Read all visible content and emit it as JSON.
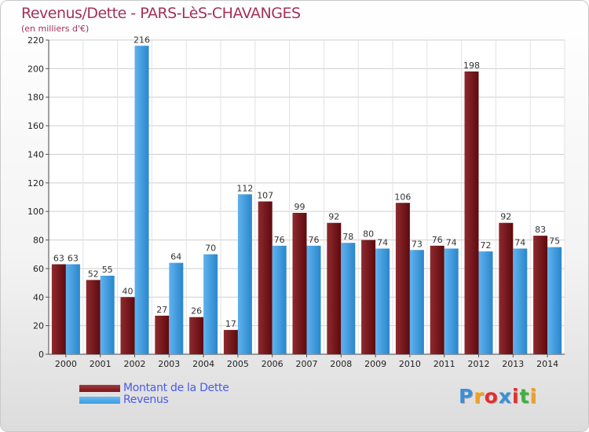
{
  "header": {
    "title": "Revenus/Dette - PARS-LèS-CHAVANGES",
    "subtitle": "(en milliers d'€)"
  },
  "chart_data": {
    "type": "bar",
    "categories": [
      "2000",
      "2001",
      "2002",
      "2003",
      "2004",
      "2005",
      "2006",
      "2007",
      "2008",
      "2009",
      "2010",
      "2011",
      "2012",
      "2013",
      "2014"
    ],
    "series": [
      {
        "name": "Montant de la Dette",
        "color": "#7a1418",
        "values": [
          63,
          52,
          40,
          27,
          26,
          17,
          107,
          99,
          92,
          80,
          106,
          76,
          198,
          92,
          83
        ]
      },
      {
        "name": "Revenus",
        "color": "#3c9be0",
        "values": [
          63,
          55,
          216,
          64,
          70,
          112,
          76,
          76,
          78,
          74,
          73,
          74,
          72,
          74,
          75
        ]
      }
    ],
    "yticks": [
      "0",
      "20",
      "40",
      "60",
      "80",
      "100",
      "120",
      "140",
      "160",
      "180",
      "200",
      "220"
    ],
    "ylim": [
      0,
      220
    ],
    "grid": true,
    "legend_position": "bottom-left"
  },
  "logo": {
    "text": "Proxiti",
    "colors": [
      "#3a8fd8",
      "#f0a020",
      "#e03030",
      "#3a8fd8",
      "#e03030",
      "#40b040",
      "#f0a020"
    ]
  }
}
